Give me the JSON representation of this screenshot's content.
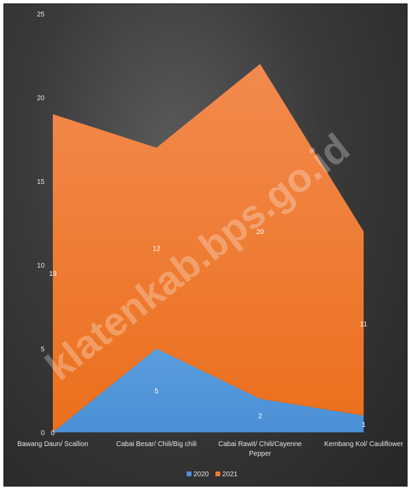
{
  "chart_data": {
    "type": "area",
    "stacked": true,
    "categories": [
      "Bawang Daun/ Scallion",
      "Cabai Besar/ Chili/Big chili",
      "Cabai Rawit/ Chili/Cayenne Pepper",
      "Kembang Kol/ Cauliflower"
    ],
    "category_lines": [
      [
        "Bawang Daun/ Scallion"
      ],
      [
        "Cabai Besar/ Chili/Big chili"
      ],
      [
        "Cabai Rawit/ Chili/Cayenne",
        "Pepper"
      ],
      [
        "Kembang Kol/ Cauliflower"
      ]
    ],
    "series": [
      {
        "name": "2020",
        "values": [
          0,
          5,
          2,
          1
        ],
        "color": "#4e92d6"
      },
      {
        "name": "2021",
        "values": [
          19,
          12,
          20,
          11
        ],
        "color": "#ee7a2c"
      }
    ],
    "ylim": [
      0,
      25
    ],
    "yticks": [
      0,
      5,
      10,
      15,
      20,
      25
    ],
    "grid": false,
    "legend_position": "bottom",
    "title": "",
    "xlabel": "",
    "ylabel": ""
  },
  "watermark": "klatenkab.bps.go.id"
}
